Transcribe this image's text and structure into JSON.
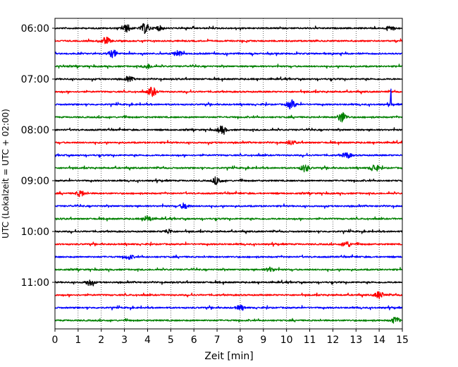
{
  "chart_data": {
    "type": "line",
    "title": "",
    "xlabel": "Zeit  [min]",
    "ylabel": "UTC (Lokalzeit = UTC + 02:00)",
    "xlim": [
      0,
      15
    ],
    "x_ticks": [
      "0",
      "1",
      "2",
      "3",
      "4",
      "5",
      "6",
      "7",
      "8",
      "9",
      "10",
      "11",
      "12",
      "13",
      "14",
      "15"
    ],
    "y_ticks": [
      "06:00",
      "07:00",
      "08:00",
      "09:00",
      "10:00",
      "11:00"
    ],
    "grid": "vertical dotted",
    "trace_interval_minutes": 15,
    "trace_colors": [
      "#000000",
      "#ff0000",
      "#0000ff",
      "#008000"
    ],
    "series": [
      {
        "start": "06:00",
        "color": "#000000",
        "events": [
          {
            "t": 3.1,
            "amp": 5
          },
          {
            "t": 3.9,
            "amp": 7
          },
          {
            "t": 4.5,
            "amp": 3
          },
          {
            "t": 14.5,
            "amp": 3
          }
        ]
      },
      {
        "start": "06:15",
        "color": "#ff0000",
        "events": [
          {
            "t": 2.2,
            "amp": 5
          }
        ]
      },
      {
        "start": "06:30",
        "color": "#0000ff",
        "events": [
          {
            "t": 2.5,
            "amp": 5
          },
          {
            "t": 5.3,
            "amp": 4
          }
        ]
      },
      {
        "start": "06:45",
        "color": "#008000",
        "events": [
          {
            "t": 4.0,
            "amp": 3
          }
        ]
      },
      {
        "start": "07:00",
        "color": "#000000",
        "events": [
          {
            "t": 3.2,
            "amp": 3
          }
        ]
      },
      {
        "start": "07:15",
        "color": "#ff0000",
        "events": [
          {
            "t": 4.2,
            "amp": 6
          }
        ]
      },
      {
        "start": "07:30",
        "color": "#0000ff",
        "events": [
          {
            "t": 10.2,
            "amp": 6
          },
          {
            "t": 14.5,
            "amp": 30
          }
        ]
      },
      {
        "start": "07:45",
        "color": "#008000",
        "events": [
          {
            "t": 12.4,
            "amp": 7
          }
        ]
      },
      {
        "start": "08:00",
        "color": "#000000",
        "events": [
          {
            "t": 7.2,
            "amp": 5
          }
        ]
      },
      {
        "start": "08:15",
        "color": "#ff0000",
        "events": [
          {
            "t": 10.2,
            "amp": 3
          }
        ]
      },
      {
        "start": "08:30",
        "color": "#0000ff",
        "events": [
          {
            "t": 12.6,
            "amp": 4
          }
        ]
      },
      {
        "start": "08:45",
        "color": "#008000",
        "events": [
          {
            "t": 10.8,
            "amp": 5
          },
          {
            "t": 13.8,
            "amp": 5
          }
        ]
      },
      {
        "start": "09:00",
        "color": "#000000",
        "events": [
          {
            "t": 7.0,
            "amp": 5
          }
        ]
      },
      {
        "start": "09:15",
        "color": "#ff0000",
        "events": [
          {
            "t": 1.1,
            "amp": 4
          }
        ]
      },
      {
        "start": "09:30",
        "color": "#0000ff",
        "events": [
          {
            "t": 5.6,
            "amp": 4
          }
        ]
      },
      {
        "start": "09:45",
        "color": "#008000",
        "events": [
          {
            "t": 4.0,
            "amp": 4
          }
        ]
      },
      {
        "start": "10:00",
        "color": "#000000",
        "events": [
          {
            "t": 4.9,
            "amp": 3
          }
        ]
      },
      {
        "start": "10:15",
        "color": "#ff0000",
        "events": [
          {
            "t": 12.6,
            "amp": 4
          }
        ]
      },
      {
        "start": "10:30",
        "color": "#0000ff",
        "events": [
          {
            "t": 3.2,
            "amp": 3
          }
        ]
      },
      {
        "start": "10:45",
        "color": "#008000",
        "events": [
          {
            "t": 9.3,
            "amp": 3
          }
        ]
      },
      {
        "start": "11:00",
        "color": "#000000",
        "events": [
          {
            "t": 1.5,
            "amp": 4
          }
        ]
      },
      {
        "start": "11:15",
        "color": "#ff0000",
        "events": [
          {
            "t": 14.0,
            "amp": 5
          }
        ]
      },
      {
        "start": "11:30",
        "color": "#0000ff",
        "events": [
          {
            "t": 8.0,
            "amp": 3
          }
        ]
      },
      {
        "start": "11:45",
        "color": "#008000",
        "events": [
          {
            "t": 14.7,
            "amp": 4
          }
        ]
      }
    ]
  }
}
